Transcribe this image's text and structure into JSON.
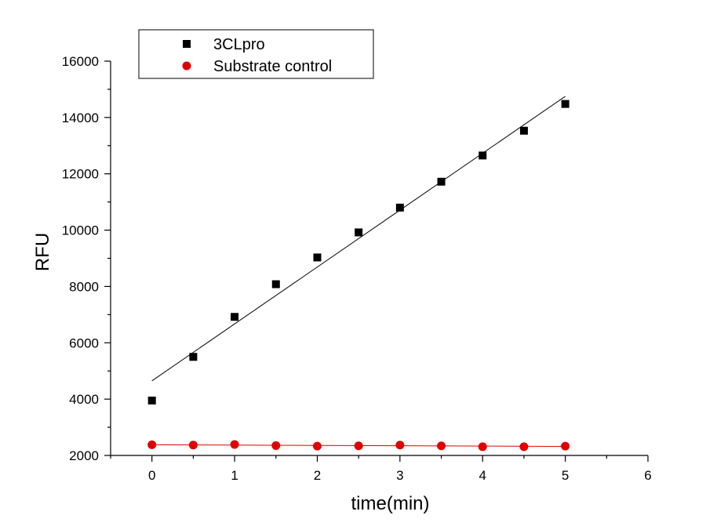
{
  "chart_data": {
    "type": "scatter",
    "title": "",
    "xlabel": "time(min)",
    "ylabel": "RFU",
    "xlim": [
      -0.5,
      6
    ],
    "ylim": [
      2000,
      16000
    ],
    "x_ticks": [
      0,
      1,
      2,
      3,
      4,
      5,
      6
    ],
    "y_ticks": [
      2000,
      4000,
      6000,
      8000,
      10000,
      12000,
      14000,
      16000
    ],
    "legend_position": "top-left",
    "grid": false,
    "series": [
      {
        "name": "3CLpro",
        "marker": "square",
        "color": "#000000",
        "x": [
          0,
          0.5,
          1,
          1.5,
          2,
          2.5,
          3,
          3.5,
          4,
          4.5,
          5
        ],
        "y": [
          3950,
          5500,
          6920,
          8080,
          9030,
          9920,
          10800,
          11720,
          12650,
          13530,
          14480
        ],
        "fit_line": {
          "x": [
            0,
            5
          ],
          "y": [
            4650,
            14750
          ],
          "color": "#000000"
        }
      },
      {
        "name": "Substrate control",
        "marker": "circle",
        "color": "#e00000",
        "x": [
          0,
          0.5,
          1,
          1.5,
          2,
          2.5,
          3,
          3.5,
          4,
          4.5,
          5
        ],
        "y": [
          2380,
          2370,
          2390,
          2350,
          2330,
          2340,
          2370,
          2340,
          2310,
          2310,
          2330
        ],
        "fit_line": {
          "x": [
            0,
            5
          ],
          "y": [
            2380,
            2320
          ],
          "color": "#e00000"
        }
      }
    ]
  }
}
